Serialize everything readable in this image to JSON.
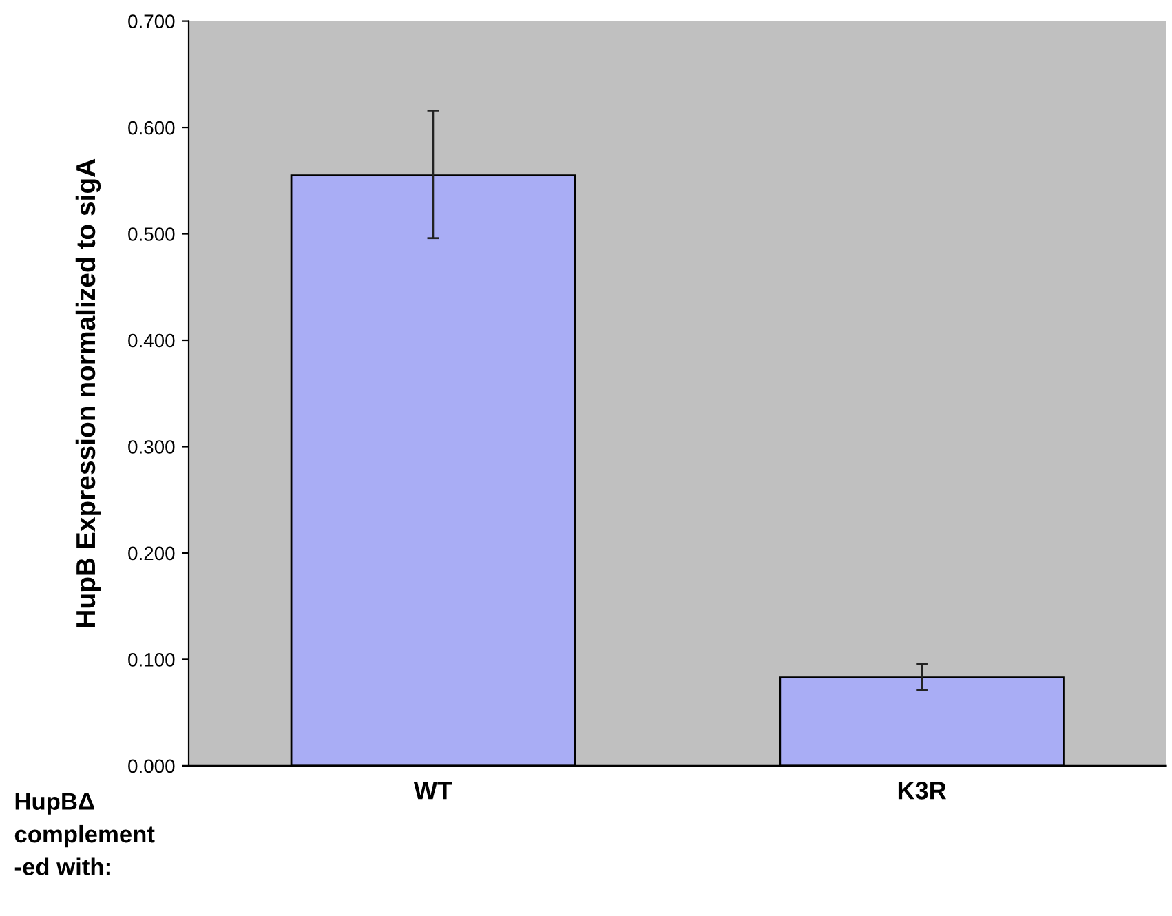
{
  "chart_data": {
    "type": "bar",
    "ylabel": "HupB Expression normalized to sigA",
    "categories": [
      "WT",
      "K3R"
    ],
    "values": [
      0.555,
      0.083
    ],
    "errors": [
      [
        0.496,
        0.616
      ],
      [
        0.071,
        0.096
      ]
    ],
    "color": "#a9adf5",
    "ylim": [
      0,
      0.7
    ],
    "yticks": [
      {
        "value": 0,
        "label": "0.000"
      },
      {
        "value": 0.1,
        "label": "0.100"
      },
      {
        "value": 0.2,
        "label": "0.200"
      },
      {
        "value": 0.3,
        "label": "0.300"
      },
      {
        "value": 0.4,
        "label": "0.400"
      },
      {
        "value": 0.5,
        "label": "0.500"
      },
      {
        "value": 0.6,
        "label": "0.600"
      },
      {
        "value": 0.7,
        "label": "0.700"
      }
    ],
    "grid": false,
    "annotations": [
      "HupBΔ\ncomplement\n-ed with:"
    ]
  }
}
